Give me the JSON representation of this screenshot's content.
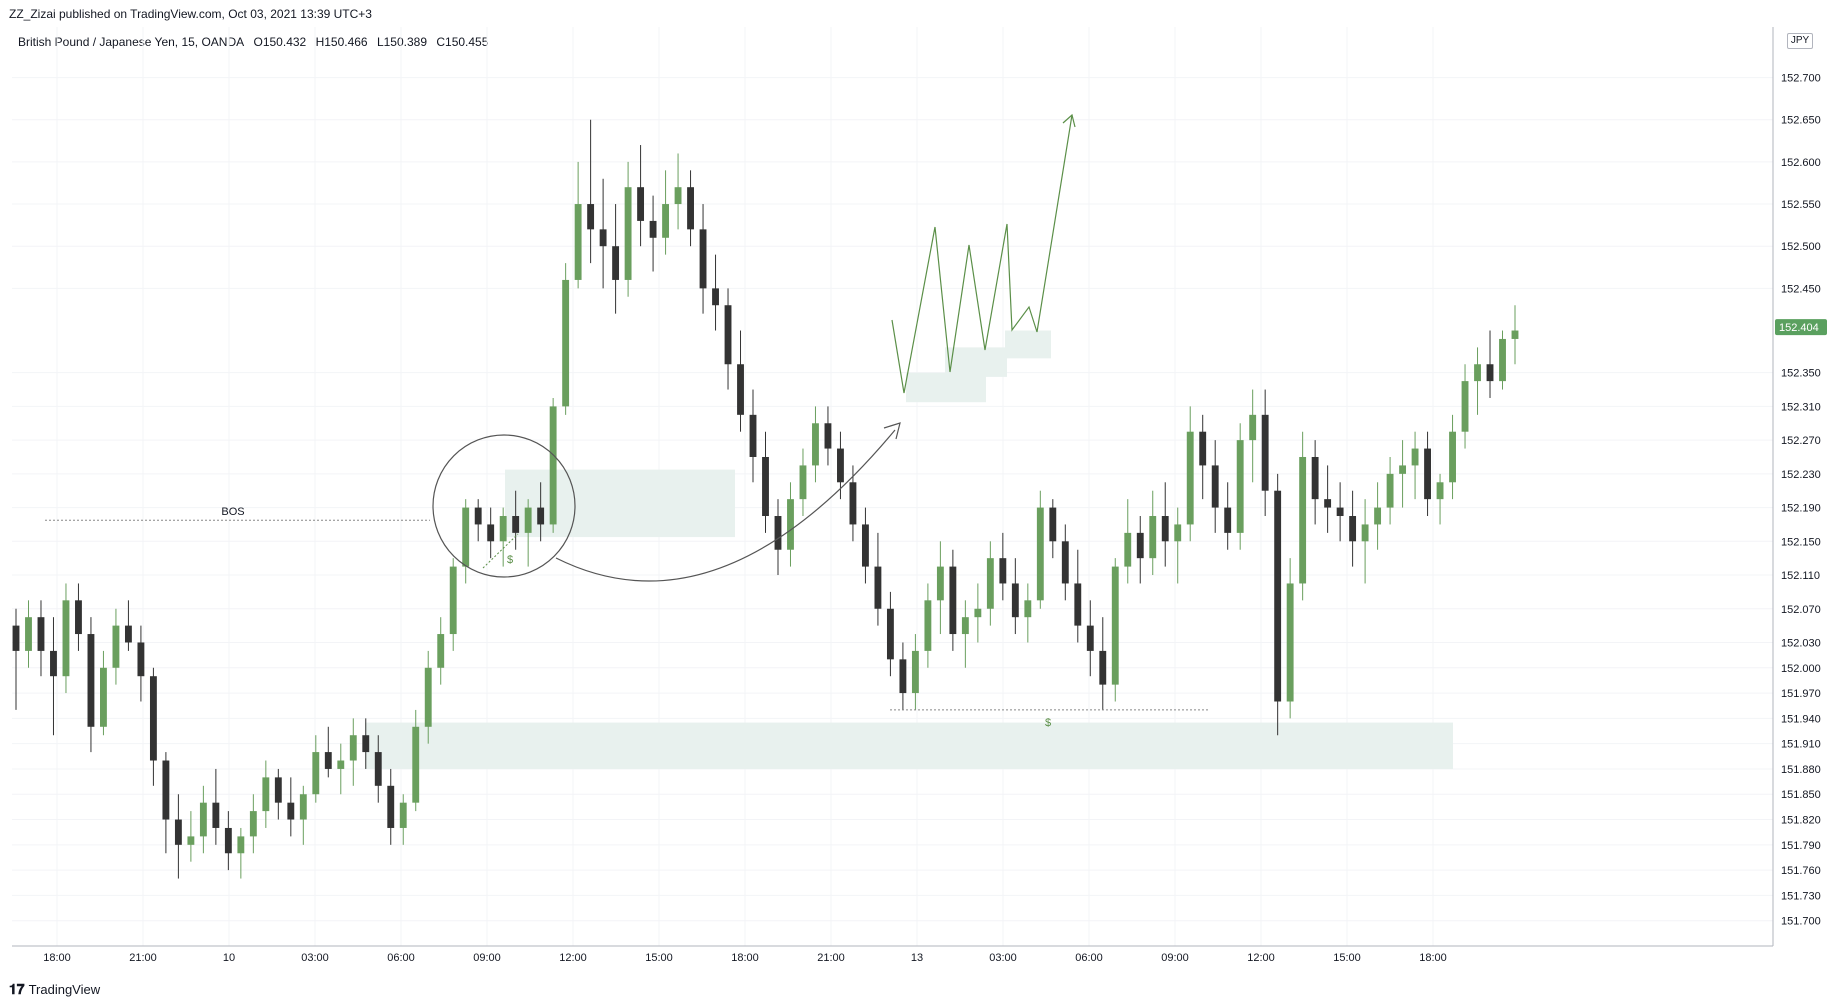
{
  "header": {
    "published_by": "ZZ_Zizai published on TradingView.com, Oct 03, 2021 13:39 UTC+3"
  },
  "symbol": {
    "name": "British Pound / Japanese Yen, 15, OANDA",
    "open": "O150.432",
    "high": "H150.466",
    "low": "L150.389",
    "close": "C150.455"
  },
  "currency_badge": "JPY",
  "footer": {
    "logo": "𝟏𝟕",
    "brand": "TradingView"
  },
  "colors": {
    "up": "#6a9f5e",
    "down": "#333333",
    "zone": "#e8f1ee",
    "projection": "#5b8f48",
    "annotation": "#555555",
    "last_price_bg": "#5aa05f"
  },
  "annotations": {
    "bos_label": "BOS",
    "liquidity_label_1": "$",
    "liquidity_label_2": "$"
  },
  "chart_data": {
    "type": "candlestick",
    "title": "",
    "y_axis": {
      "ticks": [
        "152.700",
        "152.650",
        "152.600",
        "152.550",
        "152.500",
        "152.450",
        "152.350",
        "152.310",
        "152.270",
        "152.230",
        "152.190",
        "152.150",
        "152.110",
        "152.070",
        "152.030",
        "152.000",
        "151.970",
        "151.940",
        "151.910",
        "151.880",
        "151.850",
        "151.820",
        "151.790",
        "151.760",
        "151.730",
        "151.700"
      ],
      "last_price": "152.404",
      "range": [
        151.67,
        152.76
      ]
    },
    "x_axis": {
      "ticks": [
        "18:00",
        "21:00",
        "10",
        "03:00",
        "06:00",
        "09:00",
        "12:00",
        "15:00",
        "18:00",
        "21:00",
        "13",
        "03:00",
        "06:00",
        "09:00",
        "12:00",
        "15:00",
        "18:00"
      ]
    },
    "candles": [
      [
        152.05,
        152.07,
        151.95,
        152.02
      ],
      [
        152.02,
        152.08,
        152.0,
        152.06
      ],
      [
        152.06,
        152.08,
        151.99,
        152.02
      ],
      [
        152.02,
        152.06,
        151.92,
        151.99
      ],
      [
        151.99,
        152.1,
        151.97,
        152.08
      ],
      [
        152.08,
        152.1,
        152.02,
        152.04
      ],
      [
        152.04,
        152.06,
        151.9,
        151.93
      ],
      [
        151.93,
        152.02,
        151.92,
        152.0
      ],
      [
        152.0,
        152.07,
        151.98,
        152.05
      ],
      [
        152.05,
        152.08,
        152.02,
        152.03
      ],
      [
        152.03,
        152.05,
        151.96,
        151.99
      ],
      [
        151.99,
        152.0,
        151.86,
        151.89
      ],
      [
        151.89,
        151.9,
        151.78,
        151.82
      ],
      [
        151.82,
        151.85,
        151.75,
        151.79
      ],
      [
        151.79,
        151.83,
        151.77,
        151.8
      ],
      [
        151.8,
        151.86,
        151.78,
        151.84
      ],
      [
        151.84,
        151.88,
        151.79,
        151.81
      ],
      [
        151.81,
        151.83,
        151.76,
        151.78
      ],
      [
        151.78,
        151.81,
        151.75,
        151.8
      ],
      [
        151.8,
        151.85,
        151.78,
        151.83
      ],
      [
        151.83,
        151.89,
        151.81,
        151.87
      ],
      [
        151.87,
        151.88,
        151.82,
        151.84
      ],
      [
        151.84,
        151.87,
        151.8,
        151.82
      ],
      [
        151.82,
        151.86,
        151.79,
        151.85
      ],
      [
        151.85,
        151.92,
        151.84,
        151.9
      ],
      [
        151.9,
        151.93,
        151.87,
        151.88
      ],
      [
        151.88,
        151.91,
        151.85,
        151.89
      ],
      [
        151.89,
        151.94,
        151.86,
        151.92
      ],
      [
        151.92,
        151.94,
        151.88,
        151.9
      ],
      [
        151.9,
        151.92,
        151.84,
        151.86
      ],
      [
        151.86,
        151.88,
        151.79,
        151.81
      ],
      [
        151.81,
        151.85,
        151.79,
        151.84
      ],
      [
        151.84,
        151.95,
        151.83,
        151.93
      ],
      [
        151.93,
        152.02,
        151.91,
        152.0
      ],
      [
        152.0,
        152.06,
        151.98,
        152.04
      ],
      [
        152.04,
        152.13,
        152.02,
        152.12
      ],
      [
        152.12,
        152.2,
        152.1,
        152.19
      ],
      [
        152.19,
        152.2,
        152.15,
        152.17
      ],
      [
        152.17,
        152.19,
        152.13,
        152.15
      ],
      [
        152.15,
        152.19,
        152.12,
        152.18
      ],
      [
        152.18,
        152.21,
        152.14,
        152.16
      ],
      [
        152.16,
        152.2,
        152.12,
        152.19
      ],
      [
        152.19,
        152.22,
        152.15,
        152.17
      ],
      [
        152.17,
        152.32,
        152.16,
        152.31
      ],
      [
        152.31,
        152.48,
        152.3,
        152.46
      ],
      [
        152.46,
        152.6,
        152.45,
        152.55
      ],
      [
        152.55,
        152.65,
        152.48,
        152.52
      ],
      [
        152.52,
        152.58,
        152.45,
        152.5
      ],
      [
        152.5,
        152.55,
        152.42,
        152.46
      ],
      [
        152.46,
        152.6,
        152.44,
        152.57
      ],
      [
        152.57,
        152.62,
        152.5,
        152.53
      ],
      [
        152.53,
        152.56,
        152.47,
        152.51
      ],
      [
        152.51,
        152.59,
        152.49,
        152.55
      ],
      [
        152.55,
        152.61,
        152.52,
        152.57
      ],
      [
        152.57,
        152.59,
        152.5,
        152.52
      ],
      [
        152.52,
        152.55,
        152.42,
        152.45
      ],
      [
        152.45,
        152.49,
        152.4,
        152.43
      ],
      [
        152.43,
        152.45,
        152.33,
        152.36
      ],
      [
        152.36,
        152.4,
        152.28,
        152.3
      ],
      [
        152.3,
        152.33,
        152.22,
        152.25
      ],
      [
        152.25,
        152.28,
        152.16,
        152.18
      ],
      [
        152.18,
        152.2,
        152.11,
        152.14
      ],
      [
        152.14,
        152.22,
        152.12,
        152.2
      ],
      [
        152.2,
        152.26,
        152.18,
        152.24
      ],
      [
        152.24,
        152.31,
        152.22,
        152.29
      ],
      [
        152.29,
        152.31,
        152.24,
        152.26
      ],
      [
        152.26,
        152.28,
        152.2,
        152.22
      ],
      [
        152.22,
        152.24,
        152.15,
        152.17
      ],
      [
        152.17,
        152.19,
        152.1,
        152.12
      ],
      [
        152.12,
        152.16,
        152.05,
        152.07
      ],
      [
        152.07,
        152.09,
        151.99,
        152.01
      ],
      [
        152.01,
        152.03,
        151.95,
        151.97
      ],
      [
        151.97,
        152.04,
        151.95,
        152.02
      ],
      [
        152.02,
        152.1,
        152.0,
        152.08
      ],
      [
        152.08,
        152.15,
        152.04,
        152.12
      ],
      [
        152.12,
        152.14,
        152.02,
        152.04
      ],
      [
        152.04,
        152.08,
        152.0,
        152.06
      ],
      [
        152.06,
        152.1,
        152.03,
        152.07
      ],
      [
        152.07,
        152.15,
        152.05,
        152.13
      ],
      [
        152.13,
        152.16,
        152.08,
        152.1
      ],
      [
        152.1,
        152.13,
        152.04,
        152.06
      ],
      [
        152.06,
        152.1,
        152.03,
        152.08
      ],
      [
        152.08,
        152.21,
        152.07,
        152.19
      ],
      [
        152.19,
        152.2,
        152.13,
        152.15
      ],
      [
        152.15,
        152.17,
        152.08,
        152.1
      ],
      [
        152.1,
        152.14,
        152.03,
        152.05
      ],
      [
        152.05,
        152.08,
        151.99,
        152.02
      ],
      [
        152.02,
        152.06,
        151.95,
        151.98
      ],
      [
        151.98,
        152.13,
        151.96,
        152.12
      ],
      [
        152.12,
        152.2,
        152.1,
        152.16
      ],
      [
        152.16,
        152.18,
        152.1,
        152.13
      ],
      [
        152.13,
        152.21,
        152.11,
        152.18
      ],
      [
        152.18,
        152.22,
        152.12,
        152.15
      ],
      [
        152.15,
        152.19,
        152.1,
        152.17
      ],
      [
        152.17,
        152.31,
        152.15,
        152.28
      ],
      [
        152.28,
        152.3,
        152.2,
        152.24
      ],
      [
        152.24,
        152.27,
        152.16,
        152.19
      ],
      [
        152.19,
        152.22,
        152.14,
        152.16
      ],
      [
        152.16,
        152.29,
        152.14,
        152.27
      ],
      [
        152.27,
        152.33,
        152.22,
        152.3
      ],
      [
        152.3,
        152.33,
        152.18,
        152.21
      ],
      [
        152.21,
        152.23,
        151.92,
        151.96
      ],
      [
        151.96,
        152.13,
        151.94,
        152.1
      ],
      [
        152.1,
        152.28,
        152.08,
        152.25
      ],
      [
        152.25,
        152.27,
        152.17,
        152.2
      ],
      [
        152.2,
        152.24,
        152.16,
        152.19
      ],
      [
        152.19,
        152.22,
        152.15,
        152.18
      ],
      [
        152.18,
        152.21,
        152.12,
        152.15
      ],
      [
        152.15,
        152.2,
        152.1,
        152.17
      ],
      [
        152.17,
        152.22,
        152.14,
        152.19
      ],
      [
        152.19,
        152.25,
        152.17,
        152.23
      ],
      [
        152.23,
        152.27,
        152.19,
        152.24
      ],
      [
        152.24,
        152.28,
        152.2,
        152.26
      ],
      [
        152.26,
        152.28,
        152.18,
        152.2
      ],
      [
        152.2,
        152.23,
        152.17,
        152.22
      ],
      [
        152.22,
        152.3,
        152.2,
        152.28
      ],
      [
        152.28,
        152.36,
        152.26,
        152.34
      ],
      [
        152.34,
        152.38,
        152.3,
        152.36
      ],
      [
        152.36,
        152.4,
        152.32,
        152.34
      ],
      [
        152.34,
        152.4,
        152.33,
        152.39
      ],
      [
        152.39,
        152.43,
        152.36,
        152.4
      ]
    ]
  }
}
